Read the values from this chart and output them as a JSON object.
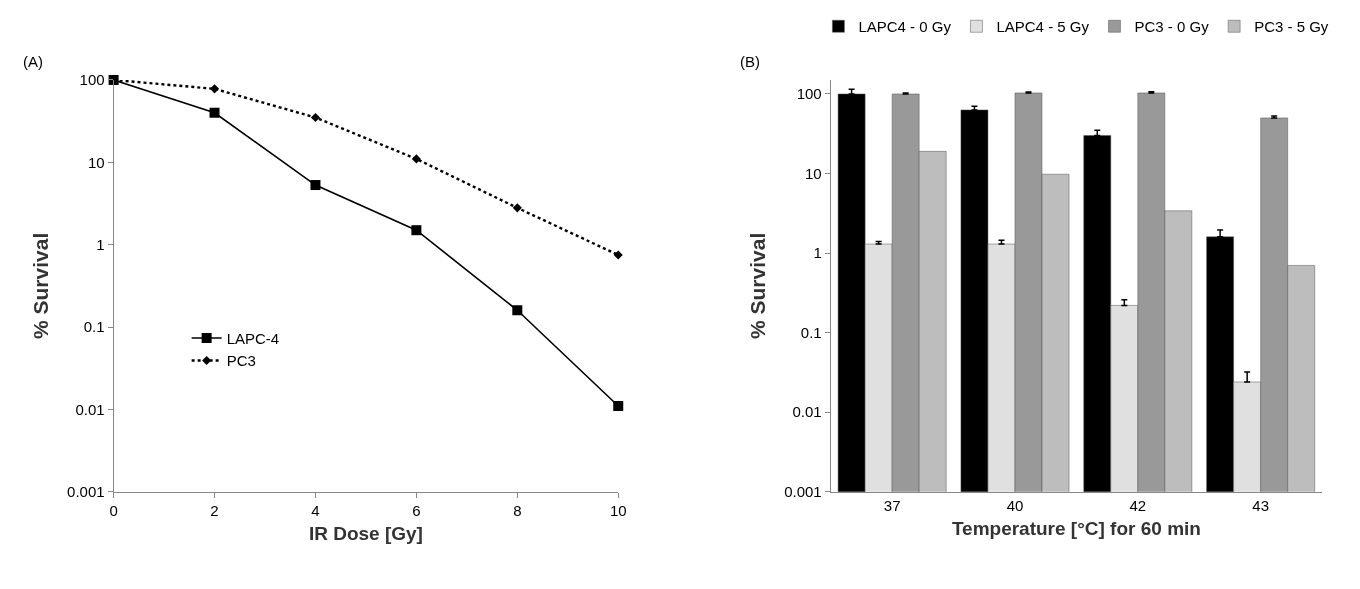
{
  "chart_data": [
    {
      "type": "line",
      "annotations": [
        "(A)"
      ],
      "xlabel": "IR Dose [Gy]",
      "ylabel": "% Survival",
      "x": [
        0,
        2,
        4,
        6,
        8,
        10
      ],
      "xlim": [
        0,
        10
      ],
      "xticks": [
        0,
        2,
        4,
        6,
        8,
        10
      ],
      "ylim": [
        0.001,
        100
      ],
      "yticks": [
        0.001,
        0.01,
        0.1,
        1,
        10,
        100
      ],
      "log": "y",
      "legend": "left",
      "series": [
        {
          "name": "LAPC-4",
          "color": "#000000",
          "values": [
            100,
            40,
            5.3,
            1.5,
            0.16,
            0.011
          ],
          "marker": "square",
          "line_style": "solid"
        },
        {
          "name": "PC3",
          "color": "#000000",
          "values": [
            100,
            78,
            35,
            11,
            2.8,
            0.75
          ],
          "marker": "diamond",
          "line_style": "dotted"
        }
      ]
    },
    {
      "type": "bar",
      "annotations": [
        "(B)"
      ],
      "xlabel": "Temperature [°C] for 60 min",
      "ylabel": "% Survival",
      "categories": [
        "37",
        "40",
        "42",
        "43"
      ],
      "ylim": [
        0.001,
        150
      ],
      "yticks": [
        0.001,
        0.01,
        0.1,
        1,
        10,
        100
      ],
      "log": "y",
      "legend": "top",
      "series": [
        {
          "name": "LAPC4 - 0 Gy",
          "color": "#000000",
          "values": [
            100,
            63,
            30,
            1.6
          ],
          "errors": [
            [
              100,
              115
            ],
            [
              63,
              70
            ],
            [
              30,
              35
            ],
            [
              1.6,
              1.95
            ]
          ]
        },
        {
          "name": "LAPC4 - 5 Gy",
          "color": "#e0e0e0",
          "values": [
            1.3,
            1.3,
            0.22,
            0.024
          ],
          "errors": [
            [
              1.3,
              1.4
            ],
            [
              1.3,
              1.45
            ],
            [
              0.22,
              0.26
            ],
            [
              0.024,
              0.032
            ]
          ]
        },
        {
          "name": "PC3 - 0 Gy",
          "color": "#999999",
          "values": [
            100,
            103,
            103,
            50
          ],
          "errors": [
            [
              100,
              103
            ],
            [
              103,
              106
            ],
            [
              103,
              107
            ],
            [
              50,
              53
            ]
          ]
        },
        {
          "name": "PC3 - 5 Gy",
          "color": "#bdbdbd",
          "values": [
            19,
            9.8,
            3.4,
            0.7
          ]
        }
      ]
    }
  ]
}
